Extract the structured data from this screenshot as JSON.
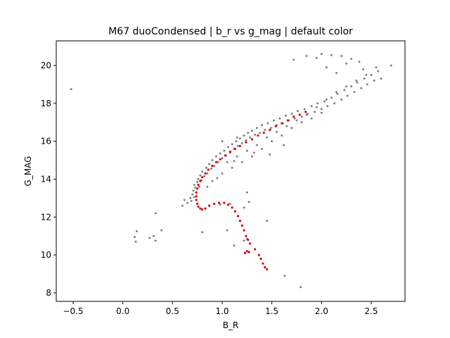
{
  "chart_data": {
    "type": "scatter",
    "title": "M67 duoCondensed | b_r vs g_mag | default color",
    "xlabel": "B_R",
    "ylabel": "G_MAG",
    "xlim": [
      -0.67,
      2.84
    ],
    "ylim": [
      21.3,
      7.55
    ],
    "y_inverted": true,
    "grid": false,
    "x_ticks": [
      -0.5,
      0.0,
      0.5,
      1.0,
      1.5,
      2.0,
      2.5
    ],
    "x_tick_labels": [
      "−0.5",
      "0.0",
      "0.5",
      "1.0",
      "1.5",
      "2.0",
      "2.5"
    ],
    "y_ticks": [
      8,
      10,
      12,
      14,
      16,
      18,
      20
    ],
    "y_tick_labels": [
      "8",
      "10",
      "12",
      "14",
      "16",
      "18",
      "20"
    ],
    "colors": {
      "stars": "#808080",
      "isochrone": "#dd0000"
    },
    "series": [
      {
        "values": [
          [
            -0.52,
            18.75
          ],
          [
            0.13,
            10.7
          ],
          [
            0.12,
            10.95
          ],
          [
            0.14,
            11.25
          ],
          [
            0.27,
            10.9
          ],
          [
            0.31,
            11.0
          ],
          [
            0.33,
            10.75
          ],
          [
            0.39,
            11.3
          ],
          [
            0.33,
            12.2
          ],
          [
            1.22,
            10.75
          ],
          [
            1.25,
            10.85
          ],
          [
            1.12,
            10.5
          ],
          [
            1.05,
            11.3
          ],
          [
            0.8,
            11.2
          ],
          [
            1.79,
            8.3
          ],
          [
            1.63,
            8.9
          ],
          [
            1.45,
            11.8
          ],
          [
            1.22,
            12.5
          ],
          [
            1.27,
            12.8
          ],
          [
            1.25,
            13.3
          ],
          [
            1.08,
            12.7
          ],
          [
            0.98,
            12.65
          ],
          [
            0.6,
            12.6
          ],
          [
            0.62,
            12.9
          ],
          [
            0.65,
            12.75
          ],
          [
            0.68,
            13.0
          ],
          [
            0.69,
            12.85
          ],
          [
            0.7,
            13.2
          ],
          [
            0.71,
            13.4
          ],
          [
            0.72,
            13.05
          ],
          [
            0.72,
            13.7
          ],
          [
            0.73,
            13.55
          ],
          [
            0.74,
            13.3
          ],
          [
            0.75,
            13.85
          ],
          [
            0.76,
            14.0
          ],
          [
            0.77,
            13.6
          ],
          [
            0.78,
            14.2
          ],
          [
            0.79,
            13.95
          ],
          [
            0.8,
            14.4
          ],
          [
            0.82,
            14.15
          ],
          [
            0.84,
            14.6
          ],
          [
            0.85,
            14.3
          ],
          [
            0.87,
            14.8
          ],
          [
            0.89,
            14.55
          ],
          [
            0.9,
            15.0
          ],
          [
            0.92,
            14.7
          ],
          [
            0.94,
            15.2
          ],
          [
            0.96,
            14.9
          ],
          [
            0.98,
            15.35
          ],
          [
            1.0,
            15.1
          ],
          [
            1.02,
            15.5
          ],
          [
            1.04,
            15.25
          ],
          [
            1.06,
            15.7
          ],
          [
            1.08,
            15.4
          ],
          [
            1.1,
            15.85
          ],
          [
            1.12,
            15.6
          ],
          [
            1.14,
            16.0
          ],
          [
            1.16,
            15.75
          ],
          [
            1.18,
            16.15
          ],
          [
            1.2,
            15.9
          ],
          [
            1.22,
            16.3
          ],
          [
            1.24,
            16.05
          ],
          [
            1.26,
            16.45
          ],
          [
            1.28,
            16.2
          ],
          [
            1.3,
            16.55
          ],
          [
            1.33,
            16.35
          ],
          [
            1.35,
            16.7
          ],
          [
            1.38,
            16.45
          ],
          [
            1.4,
            16.85
          ],
          [
            1.43,
            16.6
          ],
          [
            1.46,
            16.95
          ],
          [
            1.49,
            16.7
          ],
          [
            1.52,
            17.1
          ],
          [
            1.55,
            16.85
          ],
          [
            1.58,
            17.2
          ],
          [
            1.61,
            16.95
          ],
          [
            1.64,
            17.35
          ],
          [
            1.67,
            17.1
          ],
          [
            1.7,
            17.45
          ],
          [
            1.73,
            17.2
          ],
          [
            1.76,
            17.6
          ],
          [
            1.8,
            17.3
          ],
          [
            1.83,
            17.7
          ],
          [
            1.86,
            17.45
          ],
          [
            1.9,
            17.85
          ],
          [
            1.93,
            17.55
          ],
          [
            1.96,
            18.0
          ],
          [
            2.0,
            17.7
          ],
          [
            2.03,
            18.1
          ],
          [
            2.06,
            17.85
          ],
          [
            2.1,
            18.3
          ],
          [
            2.13,
            18.0
          ],
          [
            2.16,
            18.5
          ],
          [
            2.2,
            18.2
          ],
          [
            2.23,
            18.7
          ],
          [
            2.26,
            18.4
          ],
          [
            2.3,
            18.9
          ],
          [
            2.33,
            18.6
          ],
          [
            2.36,
            19.1
          ],
          [
            2.4,
            18.8
          ],
          [
            2.43,
            19.3
          ],
          [
            2.46,
            19.0
          ],
          [
            2.5,
            19.5
          ],
          [
            2.53,
            19.2
          ],
          [
            2.57,
            19.7
          ],
          [
            2.6,
            19.3
          ],
          [
            2.7,
            20.0
          ],
          [
            2.25,
            20.1
          ],
          [
            2.3,
            20.35
          ],
          [
            2.2,
            20.5
          ],
          [
            2.1,
            20.55
          ],
          [
            2.0,
            20.6
          ],
          [
            1.95,
            20.4
          ],
          [
            1.85,
            20.5
          ],
          [
            1.72,
            20.3
          ],
          [
            2.42,
            19.8
          ],
          [
            2.38,
            20.2
          ],
          [
            2.15,
            19.6
          ],
          [
            2.05,
            19.9
          ],
          [
            1.0,
            14.3
          ],
          [
            1.1,
            14.6
          ],
          [
            1.2,
            14.9
          ],
          [
            1.3,
            15.2
          ],
          [
            1.4,
            15.6
          ],
          [
            1.5,
            16.0
          ],
          [
            1.6,
            16.3
          ],
          [
            1.7,
            16.7
          ],
          [
            1.8,
            17.0
          ],
          [
            1.9,
            17.2
          ],
          [
            2.0,
            17.5
          ],
          [
            0.85,
            13.6
          ],
          [
            0.9,
            13.9
          ],
          [
            1.05,
            14.9
          ],
          [
            1.15,
            15.2
          ],
          [
            1.25,
            15.5
          ],
          [
            1.35,
            15.8
          ],
          [
            1.45,
            16.2
          ],
          [
            1.55,
            16.5
          ],
          [
            1.65,
            16.8
          ],
          [
            1.75,
            17.1
          ],
          [
            1.85,
            17.4
          ],
          [
            1.95,
            17.8
          ],
          [
            2.05,
            18.2
          ],
          [
            2.15,
            18.6
          ],
          [
            2.25,
            18.9
          ],
          [
            2.35,
            19.2
          ],
          [
            2.45,
            19.5
          ],
          [
            2.55,
            19.9
          ],
          [
            1.0,
            16.0
          ],
          [
            1.15,
            16.2
          ],
          [
            0.95,
            14.05
          ],
          [
            1.12,
            14.95
          ],
          [
            1.62,
            15.8
          ],
          [
            1.32,
            15.4
          ],
          [
            1.48,
            15.3
          ]
        ]
      },
      {
        "values": [
          [
            1.45,
            9.25
          ],
          [
            1.43,
            9.35
          ],
          [
            1.41,
            9.55
          ],
          [
            1.39,
            9.8
          ],
          [
            1.37,
            10.0
          ],
          [
            1.33,
            10.3
          ],
          [
            1.28,
            10.6
          ],
          [
            1.26,
            10.8
          ],
          [
            1.24,
            11.0
          ],
          [
            1.22,
            11.3
          ],
          [
            1.2,
            11.55
          ],
          [
            1.18,
            11.8
          ],
          [
            1.16,
            12.05
          ],
          [
            1.13,
            12.3
          ],
          [
            1.1,
            12.5
          ],
          [
            1.06,
            12.65
          ],
          [
            1.02,
            12.75
          ],
          [
            0.97,
            12.75
          ],
          [
            0.92,
            12.7
          ],
          [
            0.87,
            12.6
          ],
          [
            0.83,
            12.45
          ],
          [
            0.8,
            12.4
          ],
          [
            0.78,
            12.45
          ],
          [
            0.76,
            12.55
          ],
          [
            0.75,
            12.7
          ],
          [
            0.74,
            12.9
          ],
          [
            0.74,
            13.1
          ],
          [
            0.74,
            13.3
          ],
          [
            0.75,
            13.5
          ],
          [
            0.76,
            13.7
          ],
          [
            0.78,
            13.9
          ],
          [
            0.8,
            14.1
          ],
          [
            0.83,
            14.3
          ],
          [
            0.86,
            14.5
          ],
          [
            0.9,
            14.7
          ],
          [
            0.94,
            14.9
          ],
          [
            0.98,
            15.05
          ],
          [
            1.03,
            15.25
          ],
          [
            1.08,
            15.45
          ],
          [
            1.13,
            15.6
          ],
          [
            1.18,
            15.75
          ],
          [
            1.24,
            15.95
          ],
          [
            1.3,
            16.1
          ],
          [
            1.36,
            16.3
          ],
          [
            1.42,
            16.45
          ],
          [
            1.48,
            16.6
          ],
          [
            1.54,
            16.8
          ],
          [
            1.6,
            16.95
          ],
          [
            1.66,
            17.1
          ],
          [
            1.72,
            17.3
          ],
          [
            1.78,
            17.4
          ],
          [
            1.84,
            17.55
          ],
          [
            1.27,
            10.15
          ],
          [
            1.25,
            10.2
          ],
          [
            1.23,
            10.1
          ]
        ]
      }
    ]
  }
}
